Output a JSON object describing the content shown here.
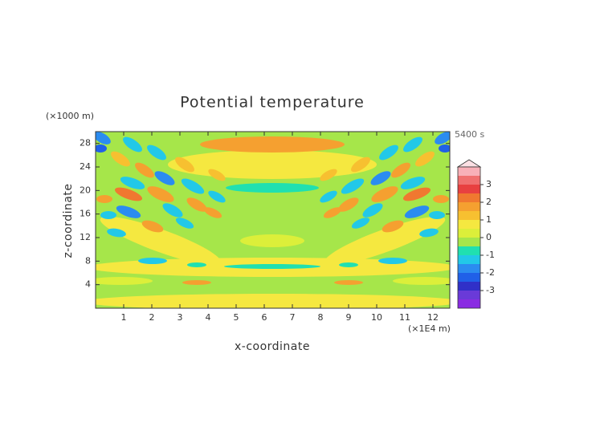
{
  "chart_data": {
    "type": "contour",
    "title": "Potential temperature",
    "y_unit": "(×1000 m)",
    "x_unit": "(×1E4 m)",
    "time_label": "5400 s",
    "xlabel": "x-coordinate",
    "ylabel": "z-coordinate",
    "xlim": [
      0,
      12.6
    ],
    "xticks": [
      1,
      2,
      3,
      4,
      5,
      6,
      7,
      8,
      9,
      10,
      11,
      12
    ],
    "ylim": [
      0,
      30
    ],
    "yticks": [
      4,
      8,
      12,
      16,
      20,
      24,
      28
    ],
    "colorbar": {
      "lim": [
        -4,
        4
      ],
      "ticks": [
        -3,
        -2,
        -1,
        0,
        1,
        2,
        3
      ],
      "levels": [
        -4,
        -3.5,
        -3,
        -2.5,
        -2,
        -1.5,
        -1,
        -0.5,
        0,
        0.5,
        1,
        1.5,
        2,
        2.5,
        3,
        3.5,
        4
      ],
      "colors": [
        "#8a2be2",
        "#6a3ad8",
        "#3030c8",
        "#2060e8",
        "#2b8cf0",
        "#22c8e8",
        "#20e0b0",
        "#a6e64a",
        "#dcef3a",
        "#f5e840",
        "#f7c030",
        "#f5a030",
        "#f07830",
        "#e84040",
        "#f07070",
        "#f8b0b8"
      ]
    }
  }
}
